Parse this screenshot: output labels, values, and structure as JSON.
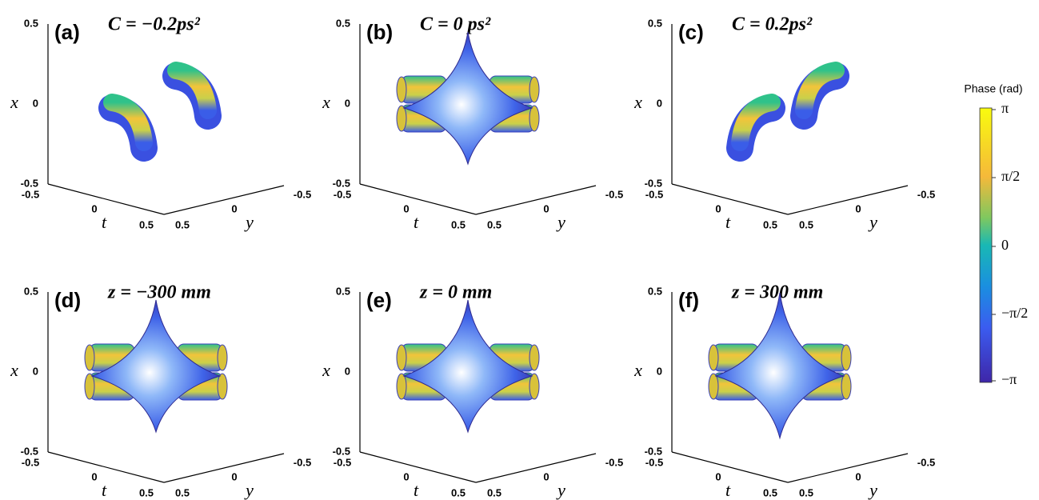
{
  "panels": [
    {
      "label": "(a)",
      "title": "C = −0.2ps²"
    },
    {
      "label": "(b)",
      "title": "C = 0 ps²"
    },
    {
      "label": "(c)",
      "title": "C = 0.2ps²"
    },
    {
      "label": "(d)",
      "title": "z = −300 mm"
    },
    {
      "label": "(e)",
      "title": "z = 0 mm"
    },
    {
      "label": "(f)",
      "title": "z = 300 mm"
    }
  ],
  "axes": {
    "x_label": "x",
    "t_label": "t",
    "y_label": "y",
    "x_ticks": [
      "0.5",
      "0",
      "-0.5"
    ],
    "t_ticks": [
      "-0.5",
      "0",
      "0.5"
    ],
    "y_ticks": [
      "0.5",
      "0",
      "-0.5"
    ]
  },
  "colorbar": {
    "title": "Phase (rad)",
    "ticks": [
      "π",
      "π/2",
      "0",
      "−π/2",
      "−π"
    ]
  }
}
